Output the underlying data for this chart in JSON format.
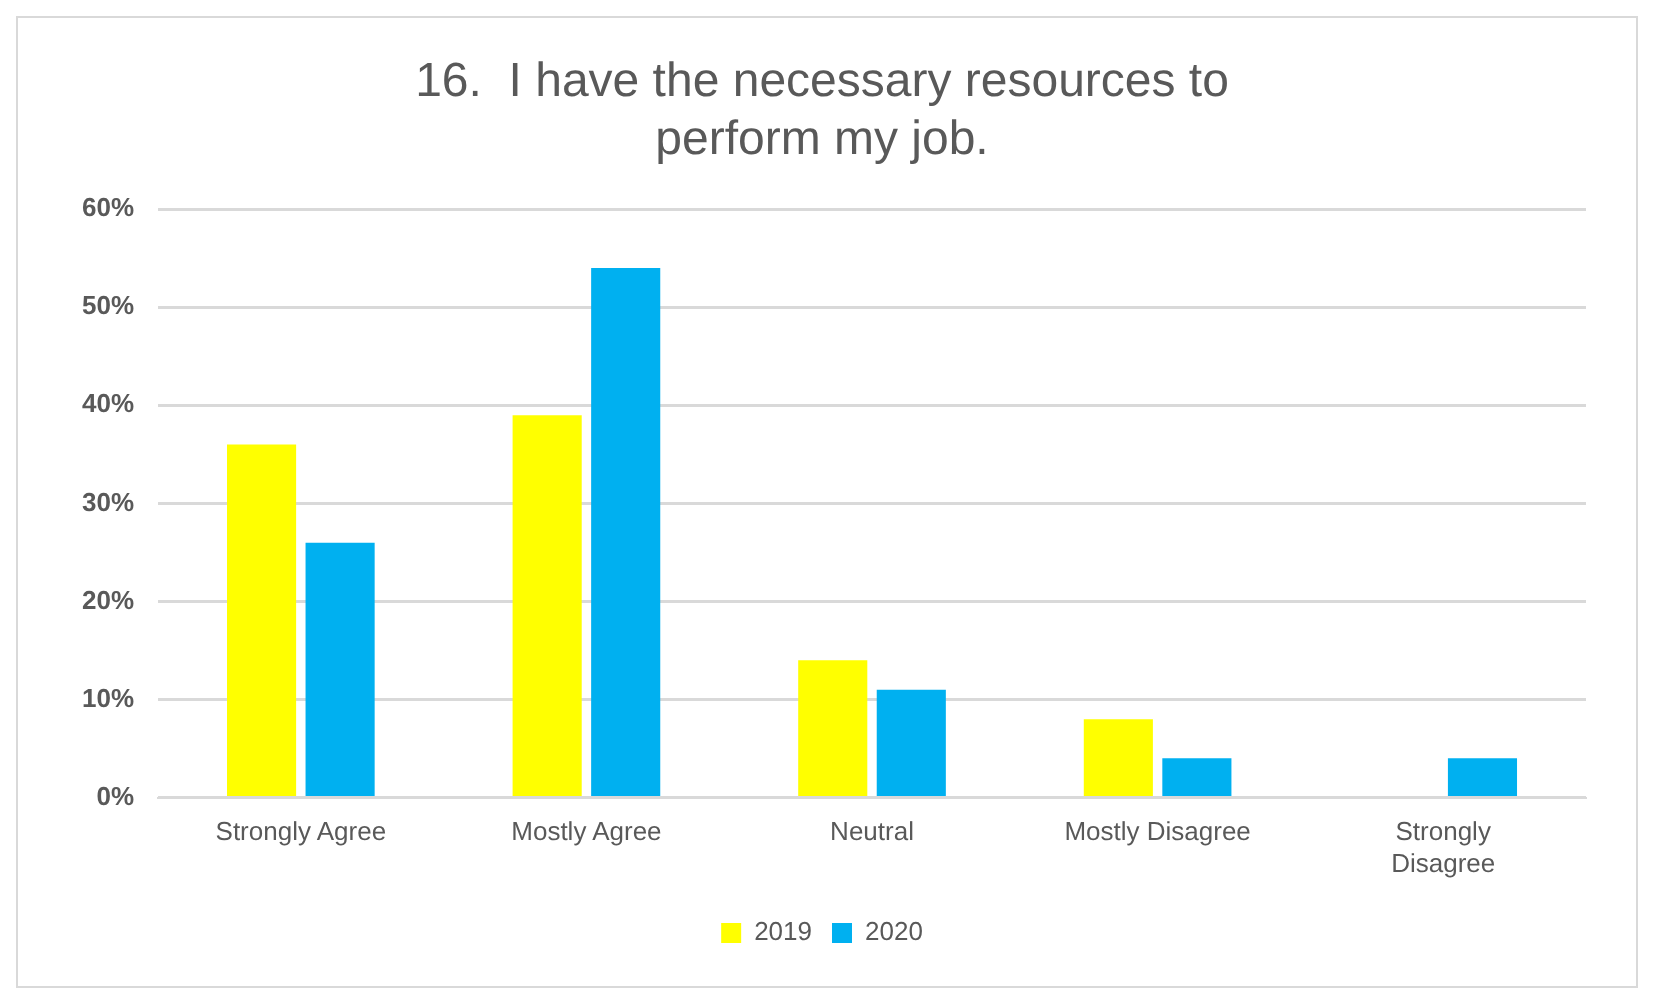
{
  "chart_data": {
    "type": "bar",
    "title": "16.  I have the necessary resources to perform my job.",
    "categories": [
      "Strongly Agree",
      "Mostly Agree",
      "Neutral",
      "Mostly Disagree",
      "Strongly Disagree"
    ],
    "series": [
      {
        "name": "2019",
        "color": "#ffff00",
        "values": [
          36,
          39,
          14,
          8,
          0
        ]
      },
      {
        "name": "2020",
        "color": "#00b0f0",
        "values": [
          26,
          54,
          11,
          4,
          4
        ]
      }
    ],
    "ylim": [
      0,
      60
    ],
    "yticks": [
      {
        "value": 0,
        "label": "0%"
      },
      {
        "value": 10,
        "label": "10%"
      },
      {
        "value": 20,
        "label": "20%"
      },
      {
        "value": 30,
        "label": "30%"
      },
      {
        "value": 40,
        "label": "40%"
      },
      {
        "value": 50,
        "label": "50%"
      },
      {
        "value": 60,
        "label": "60%"
      }
    ],
    "grid": "y",
    "legend": "bottom"
  }
}
